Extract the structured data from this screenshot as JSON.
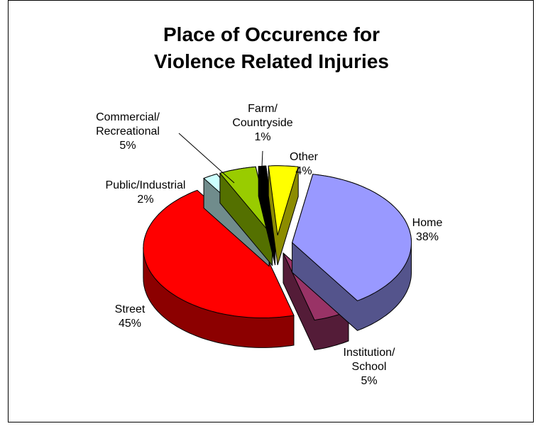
{
  "chart_data": {
    "type": "pie3d",
    "title": "Place of Occurence for Violence Related Injuries",
    "categories": [
      "Home",
      "Institution/\nSchool",
      "Street",
      "Public/Industrial",
      "Commercial/\nRecreational",
      "Farm/\nCountryside",
      "Other"
    ],
    "values": [
      38,
      5,
      45,
      2,
      5,
      1,
      4
    ],
    "value_labels": [
      "38%",
      "5%",
      "45%",
      "2%",
      "5%",
      "1%",
      "4%"
    ],
    "colors": [
      "#9999ff",
      "#993366",
      "#ff0000",
      "#ccffff",
      "#99cc00",
      "#000000",
      "#ffff00"
    ]
  }
}
